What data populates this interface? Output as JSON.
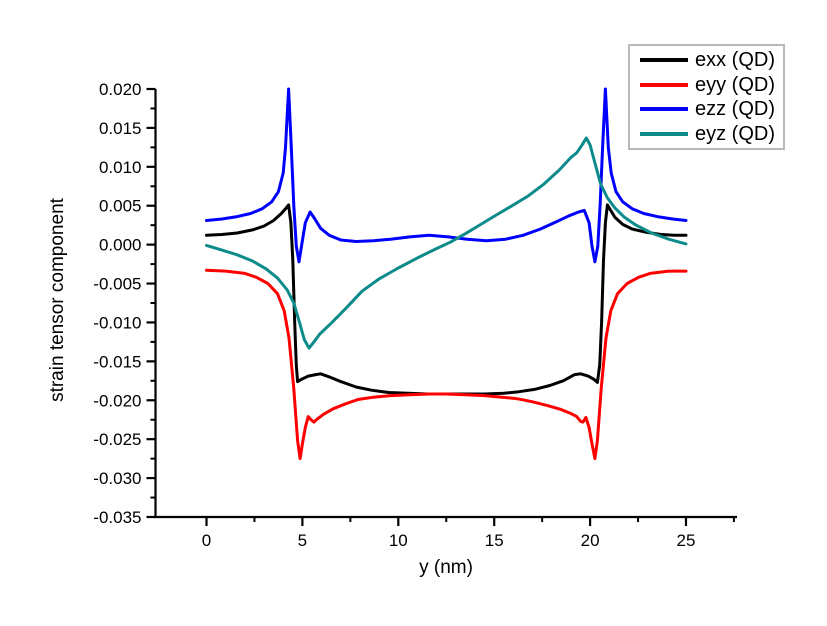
{
  "figure": {
    "background": "#ffffff",
    "axis_color": "#000000",
    "tick_label_color": "#000000"
  },
  "chart_data": {
    "type": "line",
    "title": "",
    "xlabel": "y (nm)",
    "ylabel": "strain tensor component",
    "xlim": [
      -2.66,
      27.66
    ],
    "ylim": [
      -0.035,
      0.02
    ],
    "grid": false,
    "legend": {
      "position": "top-right",
      "border_color": "#b9b9b9",
      "entries": [
        "exx (QD)",
        "eyy (QD)",
        "ezz (QD)",
        "eyz (QD)"
      ]
    },
    "x_major_ticks": [
      0,
      5,
      10,
      15,
      20,
      25
    ],
    "x_tick_labels": [
      "0",
      "5",
      "10",
      "15",
      "20",
      "25"
    ],
    "x_minor_ticks": [
      2.5,
      7.5,
      12.5,
      17.5,
      22.5,
      27.5
    ],
    "y_major_ticks": [
      0.02,
      0.015,
      0.01,
      0.005,
      0.0,
      -0.005,
      -0.01,
      -0.015,
      -0.02,
      -0.025,
      -0.03,
      -0.035
    ],
    "y_tick_labels": [
      "0.020",
      "0.015",
      "0.010",
      "0.005",
      "0.000",
      "-0.005",
      "-0.010",
      "-0.015",
      "-0.020",
      "-0.025",
      "-0.030",
      "-0.035"
    ],
    "y_minor_ticks": [
      0.0175,
      0.0125,
      0.0075,
      0.0025,
      -0.0025,
      -0.0075,
      -0.0125,
      -0.0175,
      -0.0225,
      -0.0275,
      -0.0325
    ],
    "series": [
      {
        "name": "exx (QD)",
        "color": "#000000",
        "points": [
          [
            0,
            0.0012
          ],
          [
            0.8,
            0.0013
          ],
          [
            1.6,
            0.0015
          ],
          [
            2.4,
            0.0019
          ],
          [
            3.0,
            0.0024
          ],
          [
            3.5,
            0.0031
          ],
          [
            3.9,
            0.004
          ],
          [
            4.15,
            0.0047
          ],
          [
            4.28,
            0.0051
          ],
          [
            4.4,
            0.0028
          ],
          [
            4.5,
            -0.002
          ],
          [
            4.6,
            -0.01
          ],
          [
            4.68,
            -0.0155
          ],
          [
            4.75,
            -0.0176
          ],
          [
            4.95,
            -0.0173
          ],
          [
            5.3,
            -0.0169
          ],
          [
            5.7,
            -0.0167
          ],
          [
            5.95,
            -0.0166
          ],
          [
            6.4,
            -0.017
          ],
          [
            7.0,
            -0.0176
          ],
          [
            7.8,
            -0.0183
          ],
          [
            8.6,
            -0.0187
          ],
          [
            9.5,
            -0.019
          ],
          [
            10.5,
            -0.0191
          ],
          [
            11.5,
            -0.0192
          ],
          [
            12.5,
            -0.0192
          ],
          [
            13.5,
            -0.0192
          ],
          [
            14.5,
            -0.0192
          ],
          [
            15.5,
            -0.0191
          ],
          [
            16.3,
            -0.0189
          ],
          [
            17.1,
            -0.0186
          ],
          [
            17.9,
            -0.0181
          ],
          [
            18.6,
            -0.0175
          ],
          [
            19.2,
            -0.0167
          ],
          [
            19.5,
            -0.0166
          ],
          [
            19.9,
            -0.0169
          ],
          [
            20.2,
            -0.0173
          ],
          [
            20.38,
            -0.0177
          ],
          [
            20.5,
            -0.0155
          ],
          [
            20.6,
            -0.01
          ],
          [
            20.7,
            -0.002
          ],
          [
            20.8,
            0.0028
          ],
          [
            20.9,
            0.0051
          ],
          [
            21.05,
            0.0045
          ],
          [
            21.3,
            0.0035
          ],
          [
            21.7,
            0.0026
          ],
          [
            22.2,
            0.002
          ],
          [
            22.9,
            0.0016
          ],
          [
            23.7,
            0.0013
          ],
          [
            24.4,
            0.0012
          ],
          [
            25,
            0.0012
          ]
        ]
      },
      {
        "name": "eyy (QD)",
        "color": "#ff0000",
        "points": [
          [
            0,
            -0.0033
          ],
          [
            1,
            -0.0034
          ],
          [
            2,
            -0.0037
          ],
          [
            2.6,
            -0.0042
          ],
          [
            3.2,
            -0.005
          ],
          [
            3.7,
            -0.0063
          ],
          [
            4.05,
            -0.0085
          ],
          [
            4.3,
            -0.012
          ],
          [
            4.55,
            -0.0185
          ],
          [
            4.75,
            -0.0252
          ],
          [
            4.88,
            -0.0275
          ],
          [
            5.0,
            -0.0256
          ],
          [
            5.15,
            -0.0235
          ],
          [
            5.3,
            -0.0221
          ],
          [
            5.45,
            -0.0225
          ],
          [
            5.6,
            -0.0228
          ],
          [
            5.78,
            -0.0224
          ],
          [
            6.1,
            -0.0218
          ],
          [
            6.6,
            -0.0211
          ],
          [
            7.2,
            -0.0205
          ],
          [
            7.9,
            -0.0199
          ],
          [
            8.7,
            -0.0196
          ],
          [
            9.6,
            -0.0194
          ],
          [
            10.6,
            -0.0193
          ],
          [
            11.6,
            -0.0192
          ],
          [
            12.5,
            -0.0192
          ],
          [
            13.5,
            -0.0193
          ],
          [
            14.5,
            -0.0194
          ],
          [
            15.4,
            -0.0196
          ],
          [
            16.2,
            -0.0198
          ],
          [
            17.0,
            -0.0202
          ],
          [
            17.8,
            -0.0207
          ],
          [
            18.5,
            -0.0212
          ],
          [
            19.0,
            -0.0217
          ],
          [
            19.3,
            -0.0221
          ],
          [
            19.5,
            -0.0227
          ],
          [
            19.63,
            -0.0228
          ],
          [
            19.78,
            -0.0222
          ],
          [
            19.95,
            -0.0235
          ],
          [
            20.1,
            -0.0256
          ],
          [
            20.25,
            -0.0275
          ],
          [
            20.38,
            -0.0252
          ],
          [
            20.58,
            -0.0185
          ],
          [
            20.83,
            -0.012
          ],
          [
            21.08,
            -0.0085
          ],
          [
            21.43,
            -0.0063
          ],
          [
            21.93,
            -0.005
          ],
          [
            22.53,
            -0.0042
          ],
          [
            23.13,
            -0.0037
          ],
          [
            24.1,
            -0.0034
          ],
          [
            25,
            -0.0034
          ]
        ]
      },
      {
        "name": "ezz (QD)",
        "color": "#0000ff",
        "points": [
          [
            0,
            0.0031
          ],
          [
            0.8,
            0.0033
          ],
          [
            1.6,
            0.0036
          ],
          [
            2.3,
            0.004
          ],
          [
            2.9,
            0.0046
          ],
          [
            3.4,
            0.0055
          ],
          [
            3.75,
            0.0068
          ],
          [
            4.0,
            0.0092
          ],
          [
            4.12,
            0.0125
          ],
          [
            4.28,
            0.02
          ],
          [
            4.42,
            0.0125
          ],
          [
            4.55,
            0.005
          ],
          [
            4.68,
            -0.0002
          ],
          [
            4.82,
            -0.0022
          ],
          [
            4.95,
            -0.0002
          ],
          [
            5.15,
            0.0028
          ],
          [
            5.4,
            0.0042
          ],
          [
            5.65,
            0.0033
          ],
          [
            5.95,
            0.0021
          ],
          [
            6.4,
            0.0012
          ],
          [
            7.0,
            0.0006
          ],
          [
            7.8,
            0.0004
          ],
          [
            8.7,
            0.0005
          ],
          [
            9.6,
            0.0007
          ],
          [
            10.6,
            0.001
          ],
          [
            11.6,
            0.0012
          ],
          [
            12.6,
            0.001
          ],
          [
            13.6,
            0.0007
          ],
          [
            14.6,
            0.0005
          ],
          [
            15.6,
            0.0007
          ],
          [
            16.5,
            0.0012
          ],
          [
            17.4,
            0.002
          ],
          [
            18.2,
            0.0029
          ],
          [
            18.9,
            0.0037
          ],
          [
            19.4,
            0.0042
          ],
          [
            19.7,
            0.0044
          ],
          [
            19.95,
            0.0028
          ],
          [
            20.1,
            -0.0002
          ],
          [
            20.25,
            -0.0022
          ],
          [
            20.4,
            -0.0002
          ],
          [
            20.52,
            0.005
          ],
          [
            20.65,
            0.0125
          ],
          [
            20.8,
            0.02
          ],
          [
            20.95,
            0.0125
          ],
          [
            21.1,
            0.0092
          ],
          [
            21.35,
            0.0068
          ],
          [
            21.7,
            0.0055
          ],
          [
            22.2,
            0.0046
          ],
          [
            22.8,
            0.004
          ],
          [
            23.5,
            0.0036
          ],
          [
            24.3,
            0.0033
          ],
          [
            25,
            0.0031
          ]
        ]
      },
      {
        "name": "eyz (QD)",
        "color": "#0d8b8b",
        "points": [
          [
            0,
            -0.0001
          ],
          [
            0.8,
            -0.0007
          ],
          [
            1.6,
            -0.0013
          ],
          [
            2.4,
            -0.0021
          ],
          [
            3.1,
            -0.0031
          ],
          [
            3.7,
            -0.0043
          ],
          [
            4.2,
            -0.0058
          ],
          [
            4.55,
            -0.0075
          ],
          [
            4.85,
            -0.01
          ],
          [
            5.1,
            -0.0122
          ],
          [
            5.35,
            -0.0133
          ],
          [
            5.6,
            -0.0125
          ],
          [
            5.9,
            -0.0115
          ],
          [
            6.5,
            -0.0101
          ],
          [
            7.3,
            -0.0081
          ],
          [
            8.1,
            -0.006
          ],
          [
            9.0,
            -0.0044
          ],
          [
            10.0,
            -0.003
          ],
          [
            11.0,
            -0.0017
          ],
          [
            12.0,
            -0.0005
          ],
          [
            12.7,
            0.0003
          ],
          [
            13.5,
            0.0014
          ],
          [
            14.3,
            0.0026
          ],
          [
            15.1,
            0.0038
          ],
          [
            16.0,
            0.0051
          ],
          [
            16.8,
            0.0063
          ],
          [
            17.6,
            0.0078
          ],
          [
            18.4,
            0.0096
          ],
          [
            19.0,
            0.0112
          ],
          [
            19.3,
            0.0118
          ],
          [
            19.55,
            0.0127
          ],
          [
            19.8,
            0.0137
          ],
          [
            20.0,
            0.0128
          ],
          [
            20.25,
            0.0105
          ],
          [
            20.55,
            0.0078
          ],
          [
            20.9,
            0.006
          ],
          [
            21.3,
            0.0047
          ],
          [
            21.8,
            0.0035
          ],
          [
            22.4,
            0.0025
          ],
          [
            23.2,
            0.0015
          ],
          [
            24.1,
            0.0007
          ],
          [
            25,
            0.0001
          ]
        ]
      }
    ]
  }
}
